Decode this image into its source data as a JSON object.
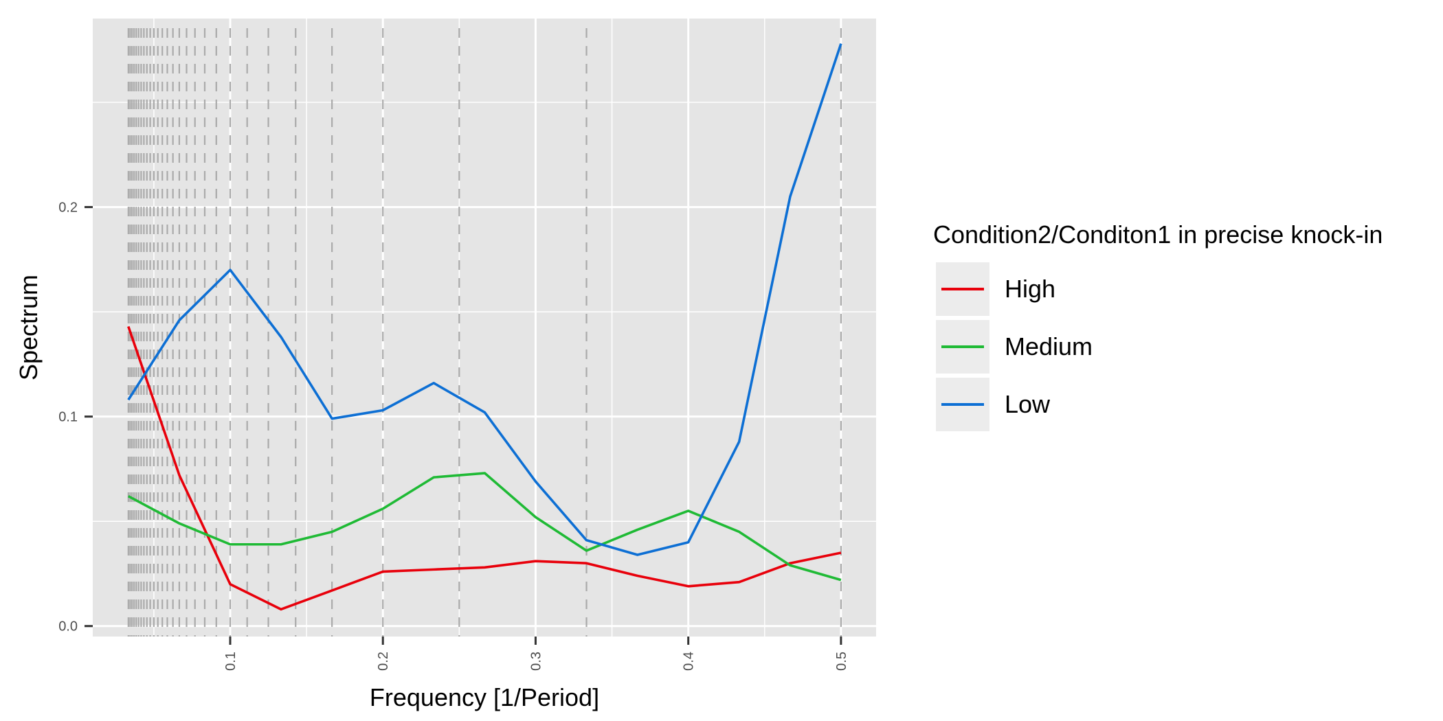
{
  "chart_data": {
    "type": "line",
    "title": "",
    "xlabel": "Frequency [1/Period]",
    "ylabel": "Spectrum",
    "xlim": [
      0.01,
      0.523
    ],
    "ylim": [
      -0.005,
      0.29
    ],
    "x_ticks": [
      0.1,
      0.2,
      0.3,
      0.4,
      0.5
    ],
    "x_tick_labels": [
      "0.1",
      "0.2",
      "0.3",
      "0.4",
      "0.5"
    ],
    "x_minor_ticks": [
      0.05,
      0.15,
      0.25,
      0.35,
      0.45
    ],
    "y_ticks": [
      0.0,
      0.1,
      0.2
    ],
    "y_tick_labels": [
      "0.0",
      "0.1",
      "0.2"
    ],
    "y_minor_ticks": [
      0.05,
      0.15,
      0.25
    ],
    "grid": true,
    "period_reference_lines": {
      "description_style": "dashed",
      "color": "#aaaaaa",
      "periods": [
        2,
        3,
        4,
        5,
        6,
        7,
        8,
        9,
        10,
        11,
        12,
        13,
        14,
        15,
        16,
        17,
        18,
        19,
        20,
        21,
        22,
        23,
        24,
        25,
        26,
        27,
        28,
        29,
        30
      ]
    },
    "legend": {
      "title": "Condition2/Conditon1 in precise knock-in",
      "placement": "right"
    },
    "x": [
      0.0333,
      0.0667,
      0.1,
      0.1333,
      0.1667,
      0.2,
      0.2333,
      0.2667,
      0.3,
      0.3333,
      0.3667,
      0.4,
      0.4333,
      0.4667,
      0.5
    ],
    "series": [
      {
        "name": "High",
        "color": "#e8000b",
        "values": [
          0.143,
          0.072,
          0.02,
          0.008,
          0.017,
          0.026,
          0.027,
          0.028,
          0.031,
          0.03,
          0.024,
          0.019,
          0.021,
          0.03,
          0.035
        ]
      },
      {
        "name": "Medium",
        "color": "#1fba35",
        "values": [
          0.062,
          0.049,
          0.039,
          0.039,
          0.045,
          0.056,
          0.071,
          0.073,
          0.052,
          0.036,
          0.046,
          0.055,
          0.045,
          0.029,
          0.022
        ]
      },
      {
        "name": "Low",
        "color": "#0d6fd4",
        "values": [
          0.108,
          0.146,
          0.17,
          0.138,
          0.099,
          0.103,
          0.116,
          0.102,
          0.069,
          0.041,
          0.034,
          0.04,
          0.088,
          0.205,
          0.278
        ]
      }
    ]
  }
}
